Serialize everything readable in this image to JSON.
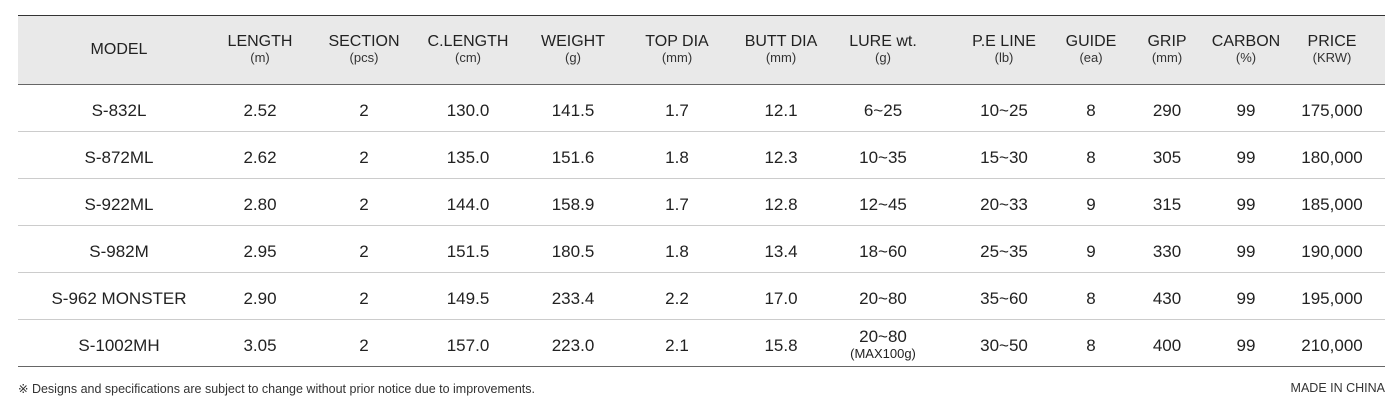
{
  "table": {
    "columns": [
      {
        "name": "MODEL"
      },
      {
        "name": "LENGTH",
        "unit": "(m)"
      },
      {
        "name": "SECTION",
        "unit": "(pcs)"
      },
      {
        "name": "C.LENGTH",
        "unit": "(cm)"
      },
      {
        "name": "WEIGHT",
        "unit": "(g)"
      },
      {
        "name": "TOP DIA",
        "unit": "(mm)"
      },
      {
        "name": "BUTT DIA",
        "unit": "(mm)"
      },
      {
        "name": "LURE wt.",
        "unit": "(g)"
      },
      {
        "name": "P.E LINE",
        "unit": "(lb)"
      },
      {
        "name": "GUIDE",
        "unit": "(ea)"
      },
      {
        "name": "GRIP",
        "unit": "(mm)"
      },
      {
        "name": "CARBON",
        "unit": "(%)"
      },
      {
        "name": "PRICE",
        "unit": "(KRW)"
      }
    ],
    "rows": [
      [
        "S-832L",
        "2.52",
        "2",
        "130.0",
        "141.5",
        "1.7",
        "12.1",
        "6~25",
        "10~25",
        "8",
        "290",
        "99",
        "175,000"
      ],
      [
        "S-872ML",
        "2.62",
        "2",
        "135.0",
        "151.6",
        "1.8",
        "12.3",
        "10~35",
        "15~30",
        "8",
        "305",
        "99",
        "180,000"
      ],
      [
        "S-922ML",
        "2.80",
        "2",
        "144.0",
        "158.9",
        "1.7",
        "12.8",
        "12~45",
        "20~33",
        "9",
        "315",
        "99",
        "185,000"
      ],
      [
        "S-982M",
        "2.95",
        "2",
        "151.5",
        "180.5",
        "1.8",
        "13.4",
        "18~60",
        "25~35",
        "9",
        "330",
        "99",
        "190,000"
      ],
      [
        "S-962 MONSTER",
        "2.90",
        "2",
        "149.5",
        "233.4",
        "2.2",
        "17.0",
        "20~80",
        "35~60",
        "8",
        "430",
        "99",
        "195,000"
      ],
      [
        "S-1002MH",
        "3.05",
        "2",
        "157.0",
        "223.0",
        "2.1",
        "15.8",
        [
          "20~80",
          "(MAX100g)"
        ],
        "30~50",
        "8",
        "400",
        "99",
        "210,000"
      ]
    ]
  },
  "footer": {
    "note": "※ Designs and specifications are subject to change without prior notice due to improvements.",
    "origin": "MADE IN CHINA"
  }
}
